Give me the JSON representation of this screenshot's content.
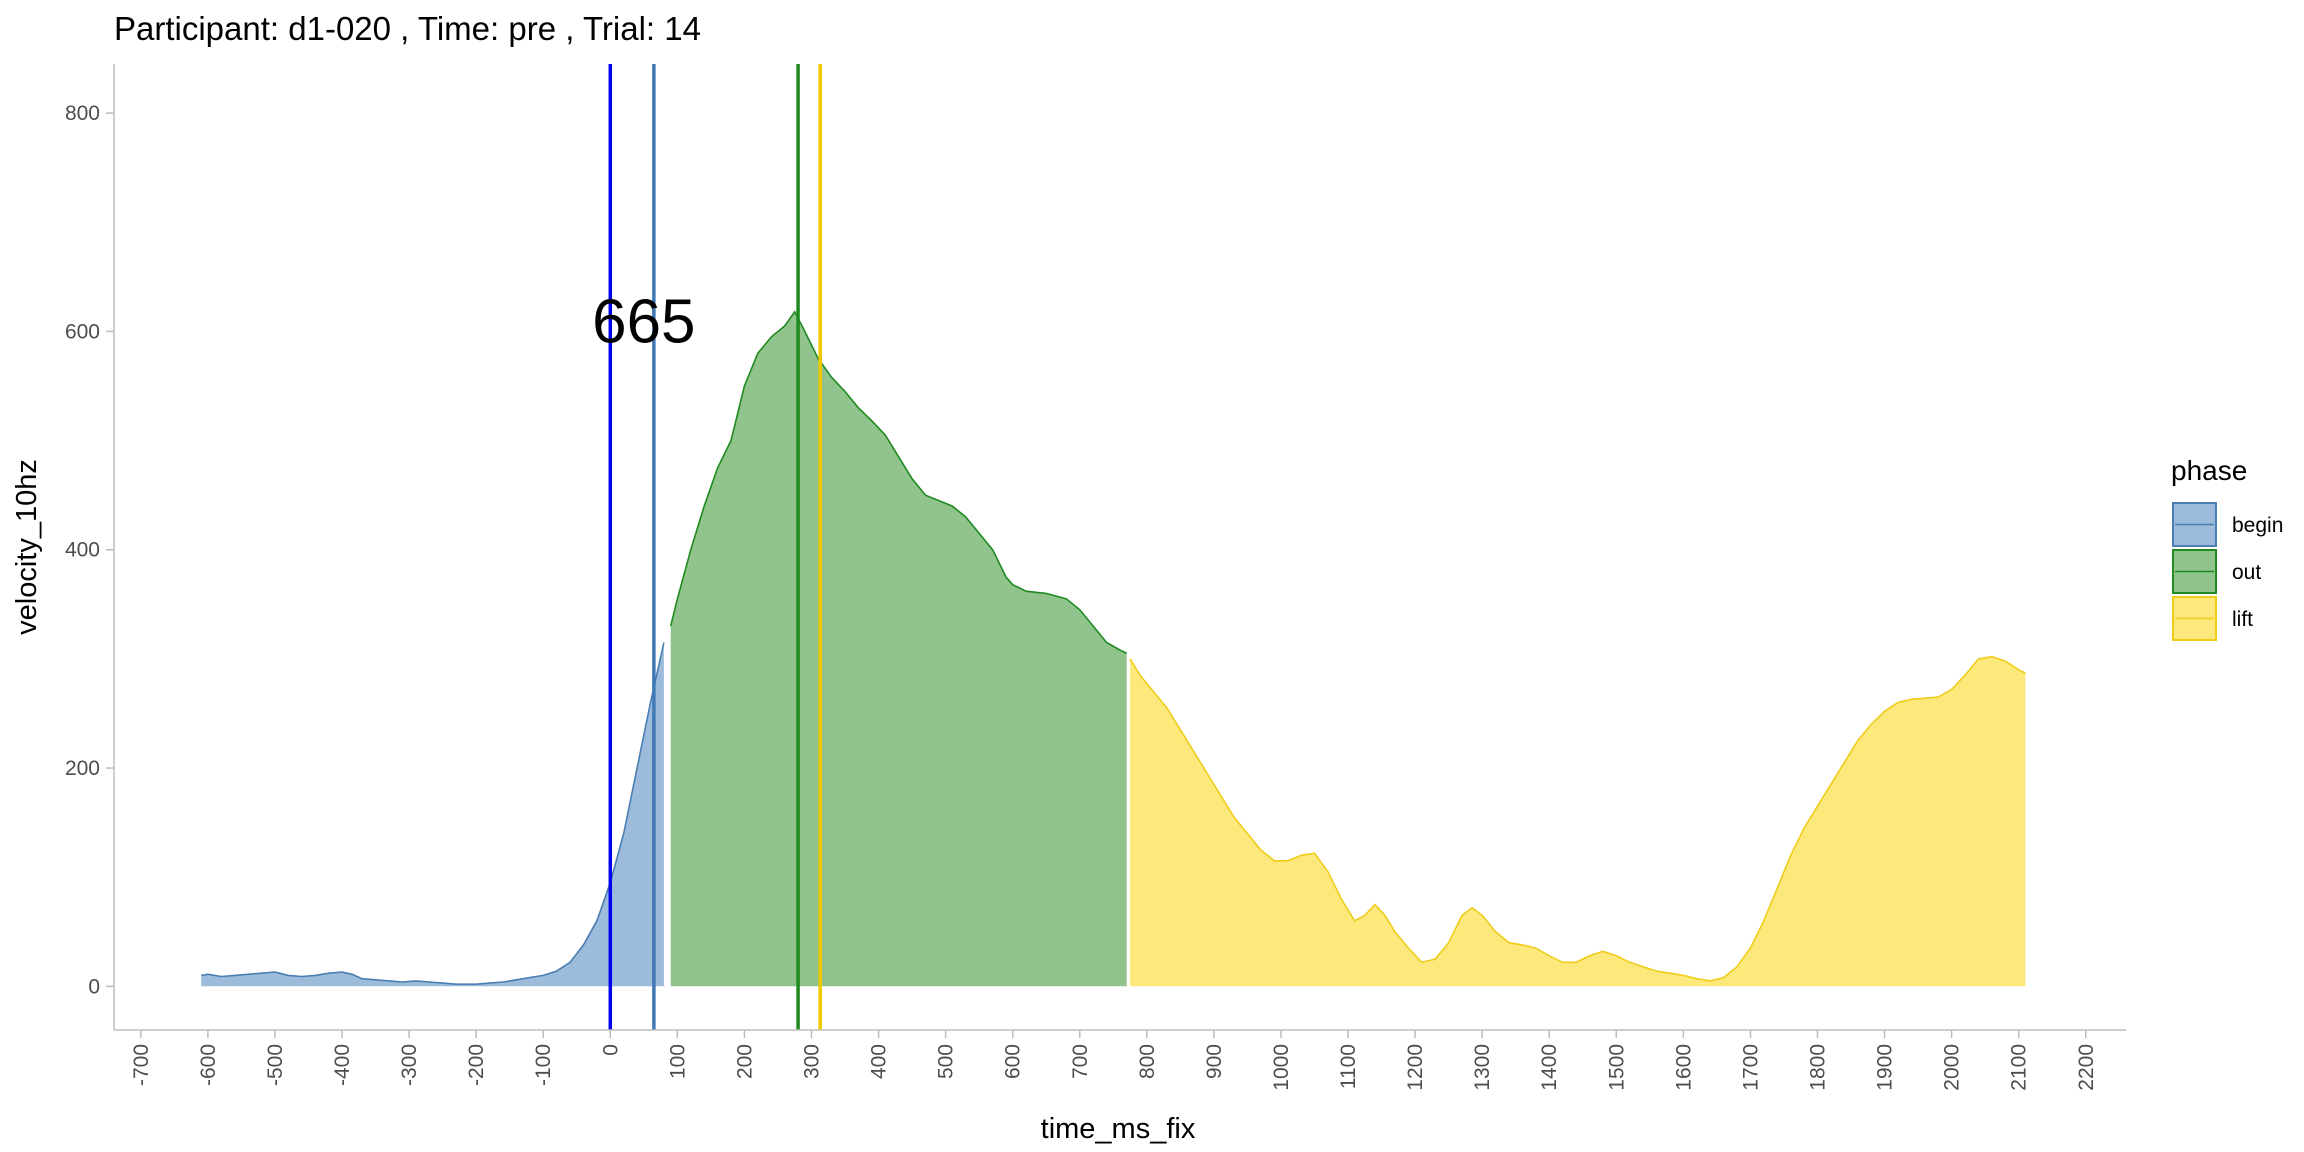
{
  "chart_data": {
    "type": "area",
    "title": "Participant:  d1-020 , Time: pre , Trial:  14",
    "xlabel": "time_ms_fix",
    "ylabel": "velocity_10hz",
    "xlim": [
      -740,
      2260
    ],
    "ylim": [
      -40,
      845
    ],
    "x_ticks": [
      -700,
      -600,
      -500,
      -400,
      -300,
      -200,
      -100,
      0,
      100,
      200,
      300,
      400,
      500,
      600,
      700,
      800,
      900,
      1000,
      1100,
      1200,
      1300,
      1400,
      1500,
      1600,
      1700,
      1800,
      1900,
      2000,
      2100,
      2200
    ],
    "y_ticks": [
      0,
      200,
      400,
      600,
      800
    ],
    "grid": false,
    "legend": {
      "title": "phase",
      "position": "right"
    },
    "colors": {
      "begin": {
        "fill": "#9dbcdb",
        "line": "#4a7eb2"
      },
      "out": {
        "fill": "#90c48c",
        "line": "#1f8a1f"
      },
      "lift": {
        "fill": "#fde87c",
        "line": "#f0cc1a"
      }
    },
    "series": [
      {
        "name": "begin",
        "points": [
          [
            -610,
            10
          ],
          [
            -600,
            11
          ],
          [
            -580,
            9
          ],
          [
            -560,
            10
          ],
          [
            -540,
            11
          ],
          [
            -520,
            12
          ],
          [
            -500,
            13
          ],
          [
            -480,
            10
          ],
          [
            -460,
            9
          ],
          [
            -440,
            10
          ],
          [
            -420,
            12
          ],
          [
            -400,
            13
          ],
          [
            -385,
            11
          ],
          [
            -370,
            7
          ],
          [
            -350,
            6
          ],
          [
            -330,
            5
          ],
          [
            -310,
            4
          ],
          [
            -290,
            5
          ],
          [
            -270,
            4
          ],
          [
            -250,
            3
          ],
          [
            -230,
            2
          ],
          [
            -200,
            2
          ],
          [
            -180,
            3
          ],
          [
            -160,
            4
          ],
          [
            -140,
            6
          ],
          [
            -120,
            8
          ],
          [
            -100,
            10
          ],
          [
            -80,
            14
          ],
          [
            -60,
            22
          ],
          [
            -40,
            38
          ],
          [
            -20,
            60
          ],
          [
            0,
            95
          ],
          [
            20,
            140
          ],
          [
            40,
            200
          ],
          [
            60,
            260
          ],
          [
            80,
            315
          ]
        ]
      },
      {
        "name": "out",
        "points": [
          [
            90,
            330
          ],
          [
            100,
            355
          ],
          [
            120,
            400
          ],
          [
            140,
            440
          ],
          [
            160,
            475
          ],
          [
            180,
            500
          ],
          [
            200,
            550
          ],
          [
            220,
            580
          ],
          [
            240,
            595
          ],
          [
            260,
            605
          ],
          [
            275,
            618
          ],
          [
            290,
            600
          ],
          [
            310,
            575
          ],
          [
            330,
            558
          ],
          [
            350,
            545
          ],
          [
            370,
            530
          ],
          [
            390,
            518
          ],
          [
            410,
            505
          ],
          [
            430,
            485
          ],
          [
            450,
            465
          ],
          [
            470,
            450
          ],
          [
            490,
            445
          ],
          [
            510,
            440
          ],
          [
            530,
            430
          ],
          [
            550,
            415
          ],
          [
            570,
            400
          ],
          [
            590,
            375
          ],
          [
            600,
            368
          ],
          [
            620,
            362
          ],
          [
            650,
            360
          ],
          [
            680,
            355
          ],
          [
            700,
            345
          ],
          [
            720,
            330
          ],
          [
            740,
            315
          ],
          [
            760,
            308
          ],
          [
            770,
            305
          ]
        ]
      },
      {
        "name": "lift",
        "points": [
          [
            775,
            300
          ],
          [
            790,
            285
          ],
          [
            810,
            270
          ],
          [
            830,
            255
          ],
          [
            860,
            225
          ],
          [
            890,
            195
          ],
          [
            910,
            175
          ],
          [
            930,
            155
          ],
          [
            950,
            140
          ],
          [
            970,
            125
          ],
          [
            990,
            115
          ],
          [
            1010,
            115
          ],
          [
            1030,
            120
          ],
          [
            1050,
            122
          ],
          [
            1070,
            105
          ],
          [
            1090,
            80
          ],
          [
            1110,
            60
          ],
          [
            1125,
            65
          ],
          [
            1140,
            75
          ],
          [
            1155,
            65
          ],
          [
            1170,
            50
          ],
          [
            1190,
            35
          ],
          [
            1210,
            22
          ],
          [
            1230,
            25
          ],
          [
            1250,
            40
          ],
          [
            1270,
            65
          ],
          [
            1285,
            72
          ],
          [
            1300,
            65
          ],
          [
            1320,
            50
          ],
          [
            1340,
            40
          ],
          [
            1360,
            38
          ],
          [
            1380,
            35
          ],
          [
            1400,
            28
          ],
          [
            1420,
            22
          ],
          [
            1440,
            22
          ],
          [
            1460,
            28
          ],
          [
            1480,
            32
          ],
          [
            1500,
            28
          ],
          [
            1520,
            22
          ],
          [
            1540,
            18
          ],
          [
            1560,
            14
          ],
          [
            1580,
            12
          ],
          [
            1600,
            10
          ],
          [
            1620,
            7
          ],
          [
            1640,
            5
          ],
          [
            1660,
            8
          ],
          [
            1680,
            18
          ],
          [
            1700,
            35
          ],
          [
            1720,
            60
          ],
          [
            1740,
            90
          ],
          [
            1760,
            120
          ],
          [
            1780,
            145
          ],
          [
            1800,
            165
          ],
          [
            1820,
            185
          ],
          [
            1840,
            205
          ],
          [
            1860,
            225
          ],
          [
            1880,
            240
          ],
          [
            1900,
            252
          ],
          [
            1920,
            260
          ],
          [
            1940,
            263
          ],
          [
            1960,
            264
          ],
          [
            1980,
            265
          ],
          [
            2000,
            272
          ],
          [
            2020,
            285
          ],
          [
            2040,
            300
          ],
          [
            2060,
            302
          ],
          [
            2080,
            298
          ],
          [
            2100,
            290
          ],
          [
            2110,
            287
          ]
        ]
      }
    ],
    "vlines": [
      {
        "x": 0,
        "color": "#0000ee"
      },
      {
        "x": 65,
        "color": "#3f78b5"
      },
      {
        "x": 280,
        "color": "#1f8a1f"
      },
      {
        "x": 313,
        "color": "#f0c800"
      }
    ],
    "annotations": [
      {
        "text": "665",
        "x": 50,
        "y": 610
      }
    ]
  }
}
